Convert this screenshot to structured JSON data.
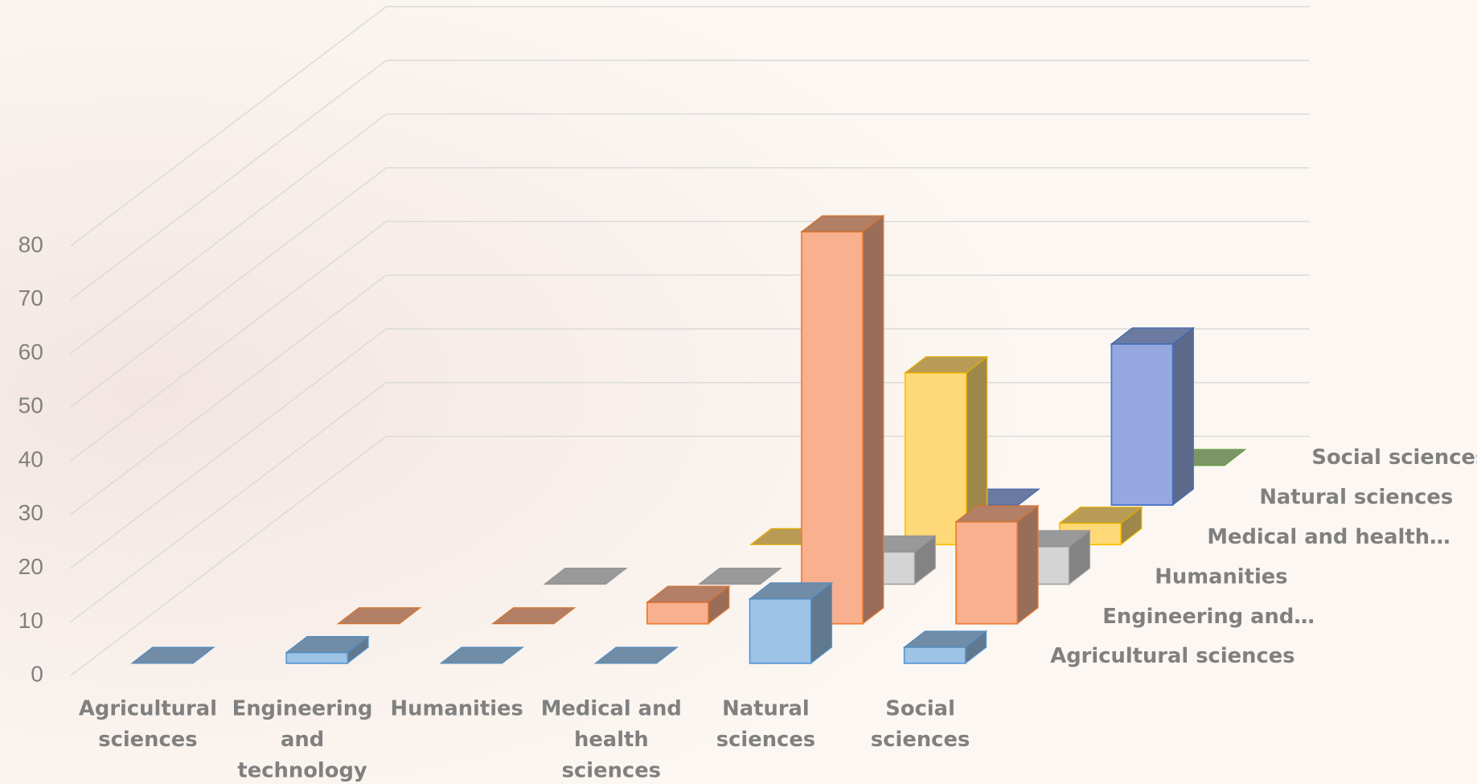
{
  "chart_data": {
    "type": "bar3d",
    "categories": [
      "Agricultural sciences",
      "Engineering and technology",
      "Humanities",
      "Medical and health sciences",
      "Natural sciences",
      "Social sciences"
    ],
    "series": [
      {
        "name": "Agricultural sciences",
        "color": "#9dc3e6",
        "edge": "#5b9bd5",
        "values": [
          0,
          2,
          0,
          0,
          12,
          3
        ]
      },
      {
        "name": "Engineering and…",
        "color": "#f8b08e",
        "edge": "#ed7d31",
        "values": [
          null,
          0,
          0,
          4,
          73,
          19
        ]
      },
      {
        "name": "Humanities",
        "color": "#d4d4d4",
        "edge": "#a5a5a5",
        "values": [
          null,
          null,
          0,
          0,
          6,
          7
        ]
      },
      {
        "name": "Medical and health…",
        "color": "#ffd977",
        "edge": "#ffc000",
        "values": [
          null,
          null,
          null,
          0,
          32,
          4
        ]
      },
      {
        "name": "Natural sciences",
        "color": "#95a9e0",
        "edge": "#4472c4",
        "values": [
          null,
          null,
          null,
          null,
          0,
          30
        ]
      },
      {
        "name": "Social sciences",
        "color": "#a9d18e",
        "edge": "#70ad47",
        "values": [
          null,
          null,
          null,
          null,
          null,
          0
        ]
      }
    ],
    "ylim": [
      0,
      80
    ],
    "yticks": [
      0,
      10,
      20,
      30,
      40,
      50,
      60,
      70,
      80
    ],
    "grid": true
  }
}
